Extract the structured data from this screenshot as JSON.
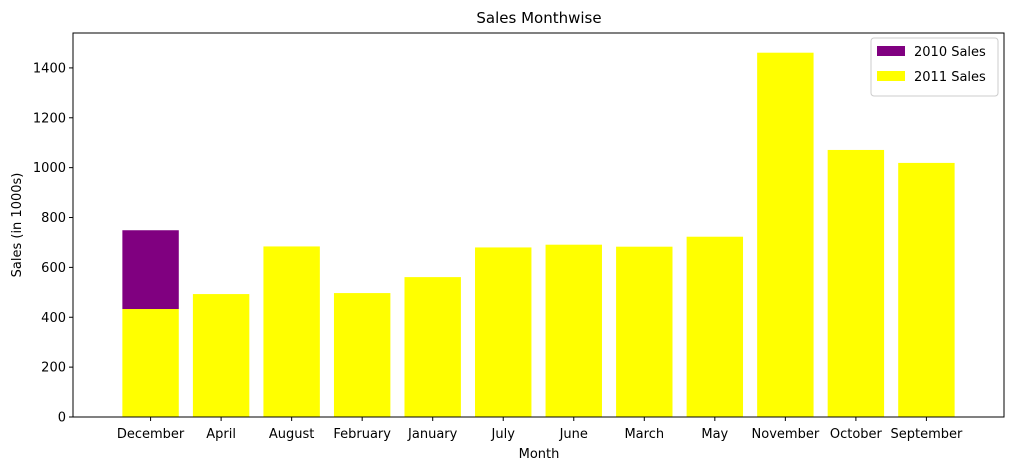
{
  "chart_data": {
    "type": "bar",
    "stacked": true,
    "title": "Sales Monthwise",
    "xlabel": "Month",
    "ylabel": "Sales (in 1000s)",
    "ylim": [
      0,
      1540
    ],
    "yticks": [
      0,
      200,
      400,
      600,
      800,
      1000,
      1200,
      1400
    ],
    "grid": false,
    "legend_position": "top-right",
    "categories": [
      "December",
      "April",
      "August",
      "February",
      "January",
      "July",
      "June",
      "March",
      "May",
      "November",
      "October",
      "September"
    ],
    "series": [
      {
        "name": "2011 Sales",
        "color": "#ffff00",
        "values": [
          433,
          493,
          684,
          497,
          561,
          680,
          691,
          683,
          723,
          1461,
          1071,
          1019
        ]
      },
      {
        "name": "2010 Sales",
        "color": "#800080",
        "values": [
          316,
          0,
          0,
          0,
          0,
          0,
          0,
          0,
          0,
          0,
          0,
          0
        ]
      }
    ],
    "legend_order": [
      "2010 Sales",
      "2011 Sales"
    ]
  }
}
